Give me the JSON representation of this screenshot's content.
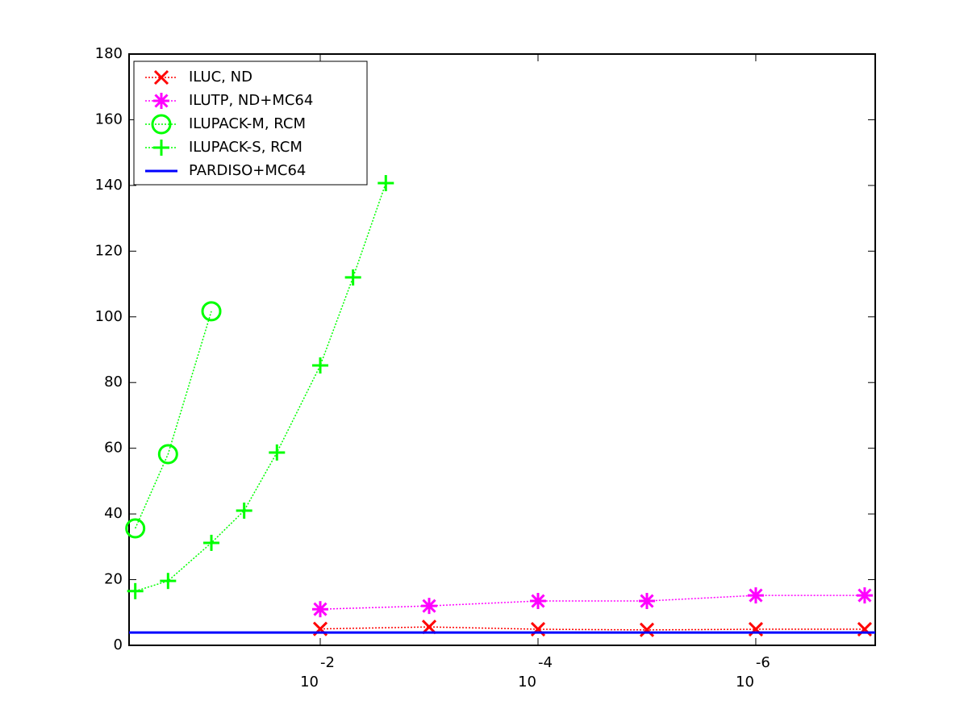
{
  "chart_data": {
    "type": "line",
    "xscale": "log",
    "xlim": [
      0.57,
      8e-08
    ],
    "ylim": [
      0,
      180
    ],
    "yticks": [
      0,
      20,
      40,
      60,
      80,
      100,
      120,
      140,
      160,
      180
    ],
    "xticks": [
      {
        "value": 0.01,
        "label": "10",
        "exponent": "-2"
      },
      {
        "value": 0.0001,
        "label": "10",
        "exponent": "-4"
      },
      {
        "value": 1e-06,
        "label": "10",
        "exponent": "-6"
      }
    ],
    "legend": "upper left",
    "series": [
      {
        "name": "ILUC,  ND",
        "color": "#ff0000",
        "marker": "x",
        "linestyle": "dotted",
        "x": [
          0.01,
          0.001,
          0.0001,
          1e-05,
          1e-06,
          1e-07
        ],
        "values": [
          5,
          5.6,
          4.9,
          4.7,
          4.9,
          4.9
        ]
      },
      {
        "name": "ILUTP,  ND+MC64",
        "color": "#ff00ff",
        "marker": "*",
        "linestyle": "dotted",
        "x": [
          0.01,
          0.001,
          0.0001,
          1e-05,
          1e-06,
          1e-07
        ],
        "values": [
          11,
          12,
          13.5,
          13.5,
          15.2,
          15.2
        ]
      },
      {
        "name": "ILUPACK-M, RCM",
        "color": "#00ff00",
        "marker": "o",
        "linestyle": "dotted",
        "x": [
          0.5,
          0.25,
          0.1
        ],
        "values": [
          35.6,
          58.2,
          101.7
        ]
      },
      {
        "name": "ILUPACK-S, RCM",
        "color": "#00ff00",
        "marker": "+",
        "linestyle": "dotted",
        "x": [
          0.5,
          0.25,
          0.1,
          0.05,
          0.025,
          0.01,
          0.005,
          0.0025
        ],
        "values": [
          16.5,
          19.6,
          31.2,
          41,
          58.7,
          85.2,
          112,
          140.7
        ]
      },
      {
        "name": "PARDISO+MC64",
        "color": "#0000ff",
        "marker": "none",
        "linestyle": "solid",
        "x": [
          0.57,
          8e-08
        ],
        "values": [
          3.9,
          3.9
        ]
      }
    ]
  }
}
